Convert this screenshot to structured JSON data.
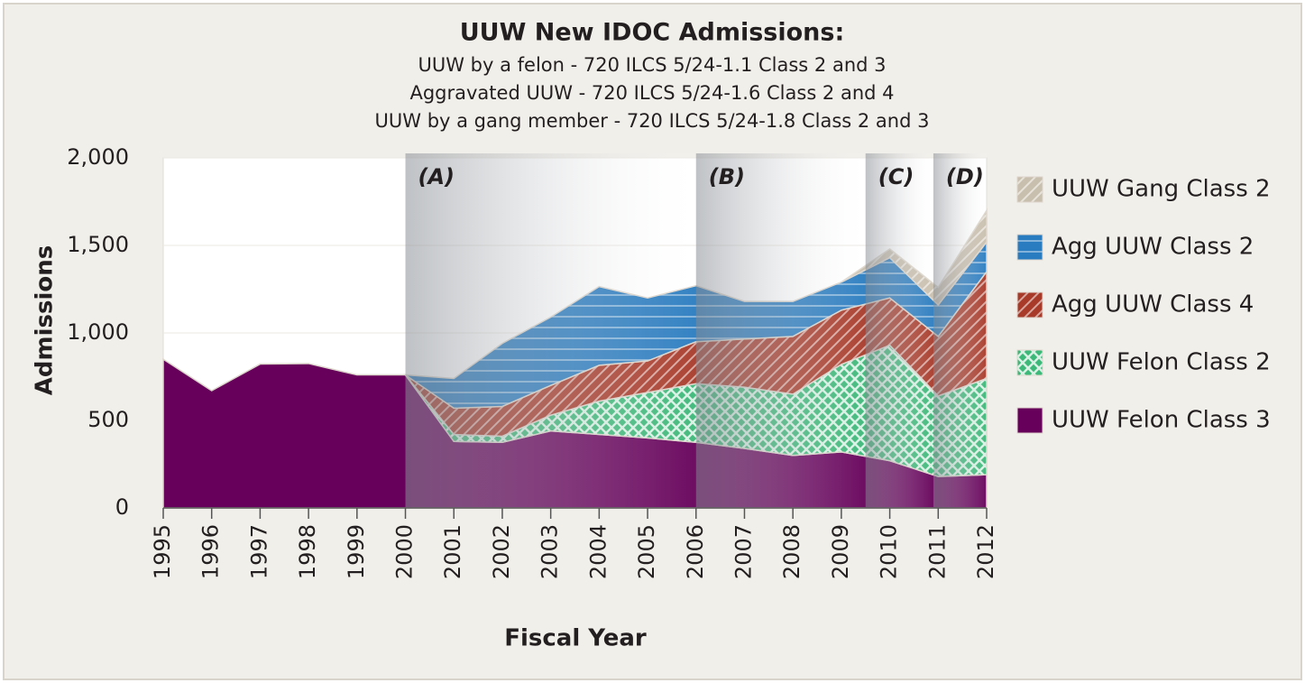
{
  "chart_data": {
    "type": "stacked_area",
    "title": "UUW New IDOC Admissions:",
    "subtitle": [
      "UUW by a felon - 720 ILCS 5/24-1.1 Class 2 and 3",
      "Aggravated UUW - 720 ILCS 5/24-1.6 Class 2 and 4",
      "UUW by a gang member - 720 ILCS 5/24-1.8 Class 2 and 3"
    ],
    "x_label": "Fiscal Year",
    "y_label": "Admissions",
    "x": [
      1995,
      1996,
      1997,
      1998,
      1999,
      2000,
      2001,
      2002,
      2003,
      2004,
      2005,
      2006,
      2007,
      2008,
      2009,
      2010,
      2011,
      2012
    ],
    "xlim": [
      1995,
      2012
    ],
    "xticks": [
      1995,
      1996,
      1997,
      1998,
      1999,
      2000,
      2001,
      2002,
      2003,
      2004,
      2005,
      2006,
      2007,
      2008,
      2009,
      2010,
      2011,
      2012
    ],
    "ylim": [
      0,
      2000
    ],
    "yticks": [
      0,
      500,
      {
        "value": 1000,
        "label": "1,000"
      },
      {
        "value": 1500,
        "label": "1,500"
      },
      {
        "value": 2000,
        "label": "2,000"
      }
    ],
    "series": [
      {
        "name": "UUW Felon Class 3",
        "color": "#66005a",
        "pattern": "solid",
        "values": [
          850,
          670,
          822,
          825,
          760,
          760,
          380,
          375,
          440,
          420,
          400,
          375,
          340,
          300,
          320,
          270,
          180,
          190
        ]
      },
      {
        "name": "UUW Felon Class 2",
        "color": "#3cb878",
        "pattern": "crosshatch",
        "values": [
          null,
          null,
          null,
          null,
          null,
          0,
          40,
          35,
          90,
          190,
          260,
          335,
          350,
          350,
          500,
          660,
          460,
          550
        ]
      },
      {
        "name": "Agg UUW Class 4",
        "color": "#a83a2a",
        "pattern": "diagonal",
        "values": [
          null,
          null,
          null,
          null,
          null,
          0,
          150,
          170,
          170,
          205,
          180,
          240,
          275,
          330,
          310,
          270,
          340,
          610
        ]
      },
      {
        "name": "Agg UUW Class 2",
        "color": "#2a7cc0",
        "pattern": "horizontal",
        "values": [
          null,
          null,
          null,
          null,
          null,
          0,
          170,
          360,
          390,
          450,
          360,
          320,
          215,
          200,
          160,
          230,
          180,
          170
        ]
      },
      {
        "name": "UUW Gang Class 2",
        "color": "#c9bfae",
        "pattern": "diagonal",
        "values": [
          null,
          null,
          null,
          null,
          null,
          null,
          null,
          null,
          null,
          null,
          null,
          null,
          null,
          null,
          0,
          50,
          100,
          180
        ]
      }
    ],
    "annotations": [
      {
        "label": "(A)",
        "start": 2000,
        "end": 2006
      },
      {
        "label": "(B)",
        "start": 2006,
        "end": 2009.5
      },
      {
        "label": "(C)",
        "start": 2009.5,
        "end": 2010.9
      },
      {
        "label": "(D)",
        "start": 2010.9,
        "end": 2012
      }
    ]
  }
}
